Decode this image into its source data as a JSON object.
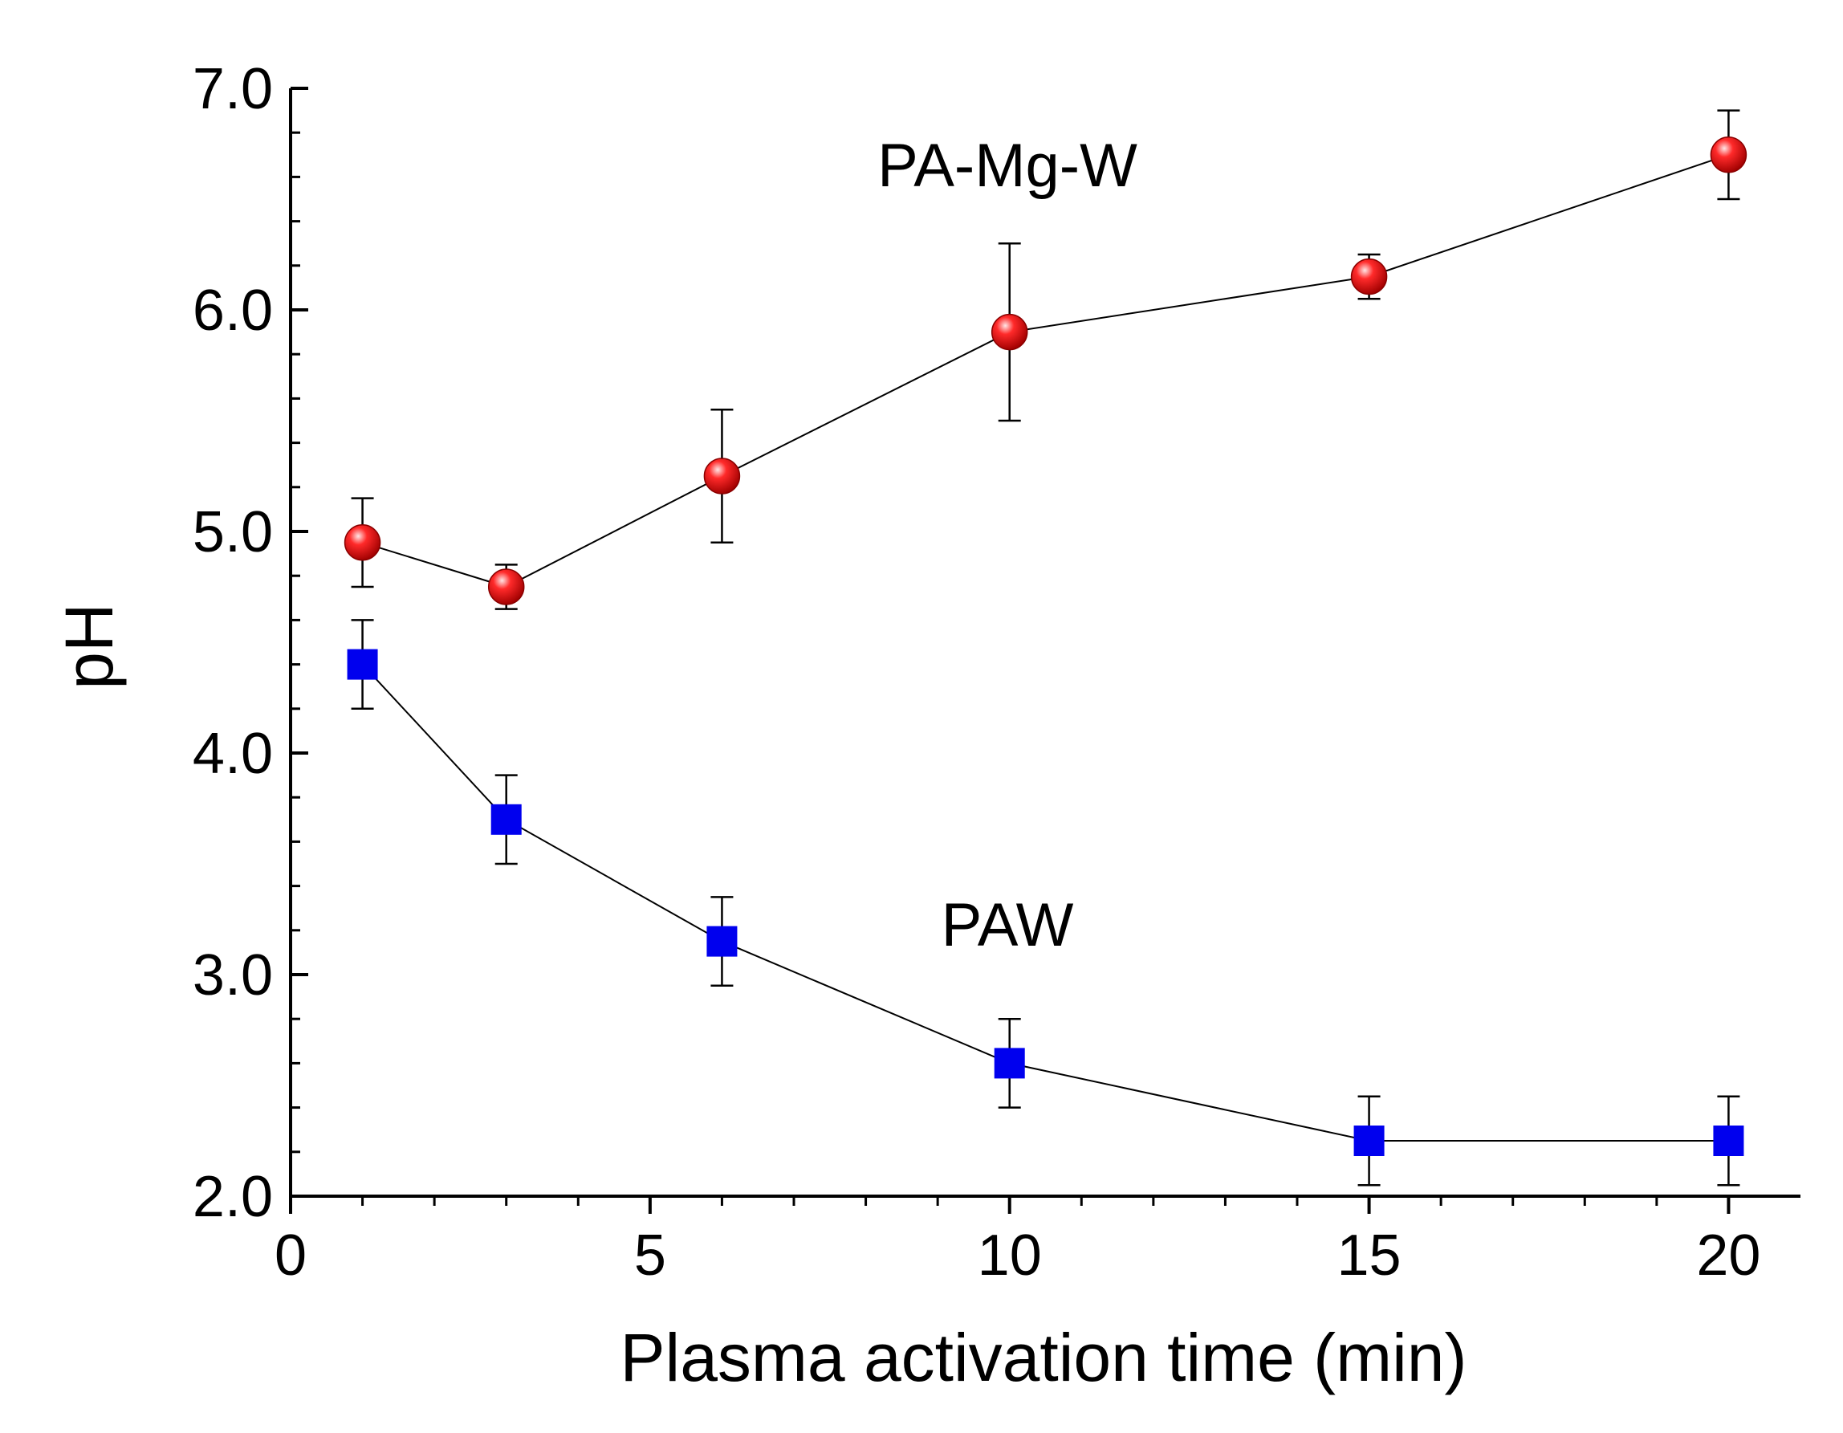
{
  "chart_data": {
    "type": "line",
    "xlabel": "Plasma activation time (min)",
    "ylabel": "pH",
    "xlim": [
      0,
      21
    ],
    "ylim": [
      2.0,
      7.0
    ],
    "x_ticks": [
      0,
      5,
      10,
      15,
      20
    ],
    "x_tick_labels": [
      "0",
      "5",
      "10",
      "15",
      "20"
    ],
    "y_ticks": [
      2.0,
      3.0,
      4.0,
      5.0,
      6.0,
      7.0
    ],
    "y_tick_labels": [
      "2.0",
      "3.0",
      "4.0",
      "5.0",
      "6.0",
      "7.0"
    ],
    "grid": false,
    "legend": "none",
    "series": [
      {
        "name": "PA-Mg-W",
        "marker": "circle",
        "color": "#e00000",
        "x": [
          1,
          3,
          6,
          10,
          15,
          20
        ],
        "y": [
          4.95,
          4.75,
          5.25,
          5.9,
          6.15,
          6.7
        ],
        "err": [
          0.2,
          0.1,
          0.3,
          0.4,
          0.1,
          0.2
        ]
      },
      {
        "name": "PAW",
        "marker": "square",
        "color": "#0000ee",
        "x": [
          1,
          3,
          6,
          10,
          15,
          20
        ],
        "y": [
          4.4,
          3.7,
          3.15,
          2.6,
          2.25,
          2.25
        ],
        "err": [
          0.2,
          0.2,
          0.2,
          0.2,
          0.2,
          0.2
        ]
      }
    ]
  }
}
